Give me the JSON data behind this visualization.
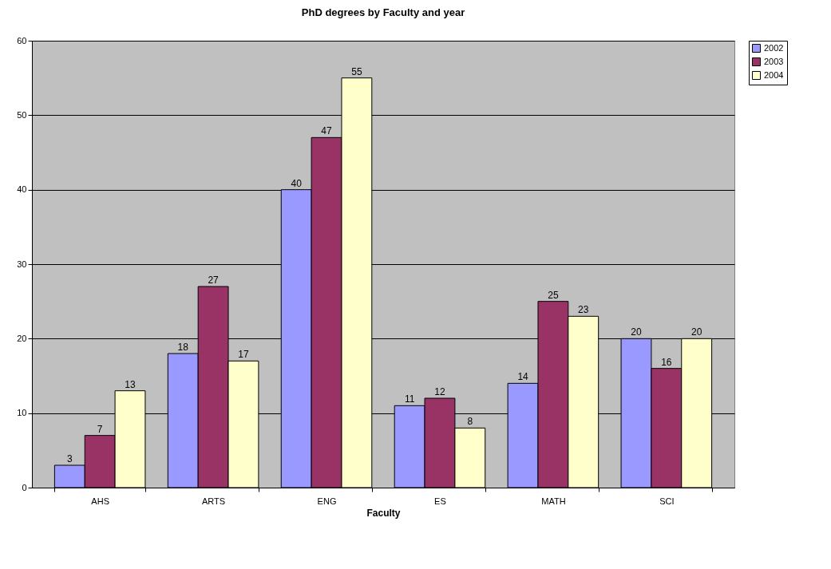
{
  "chart_data": {
    "type": "bar",
    "title": "PhD degrees by Faculty and year",
    "xlabel": "Faculty",
    "categories": [
      "AHS",
      "ARTS",
      "ENG",
      "ES",
      "MATH",
      "SCI"
    ],
    "series": [
      {
        "name": "2002",
        "color": "#9999ff",
        "values": [
          3,
          18,
          40,
          11,
          14,
          20
        ]
      },
      {
        "name": "2003",
        "color": "#993366",
        "values": [
          7,
          27,
          47,
          12,
          25,
          16
        ]
      },
      {
        "name": "2004",
        "color": "#ffffcc",
        "values": [
          13,
          17,
          55,
          8,
          23,
          20
        ]
      }
    ],
    "ylim": [
      0,
      60
    ],
    "yticks": [
      0,
      10,
      20,
      30,
      40,
      50,
      60
    ],
    "grid": "y",
    "legend": "right",
    "data_labels": true
  }
}
